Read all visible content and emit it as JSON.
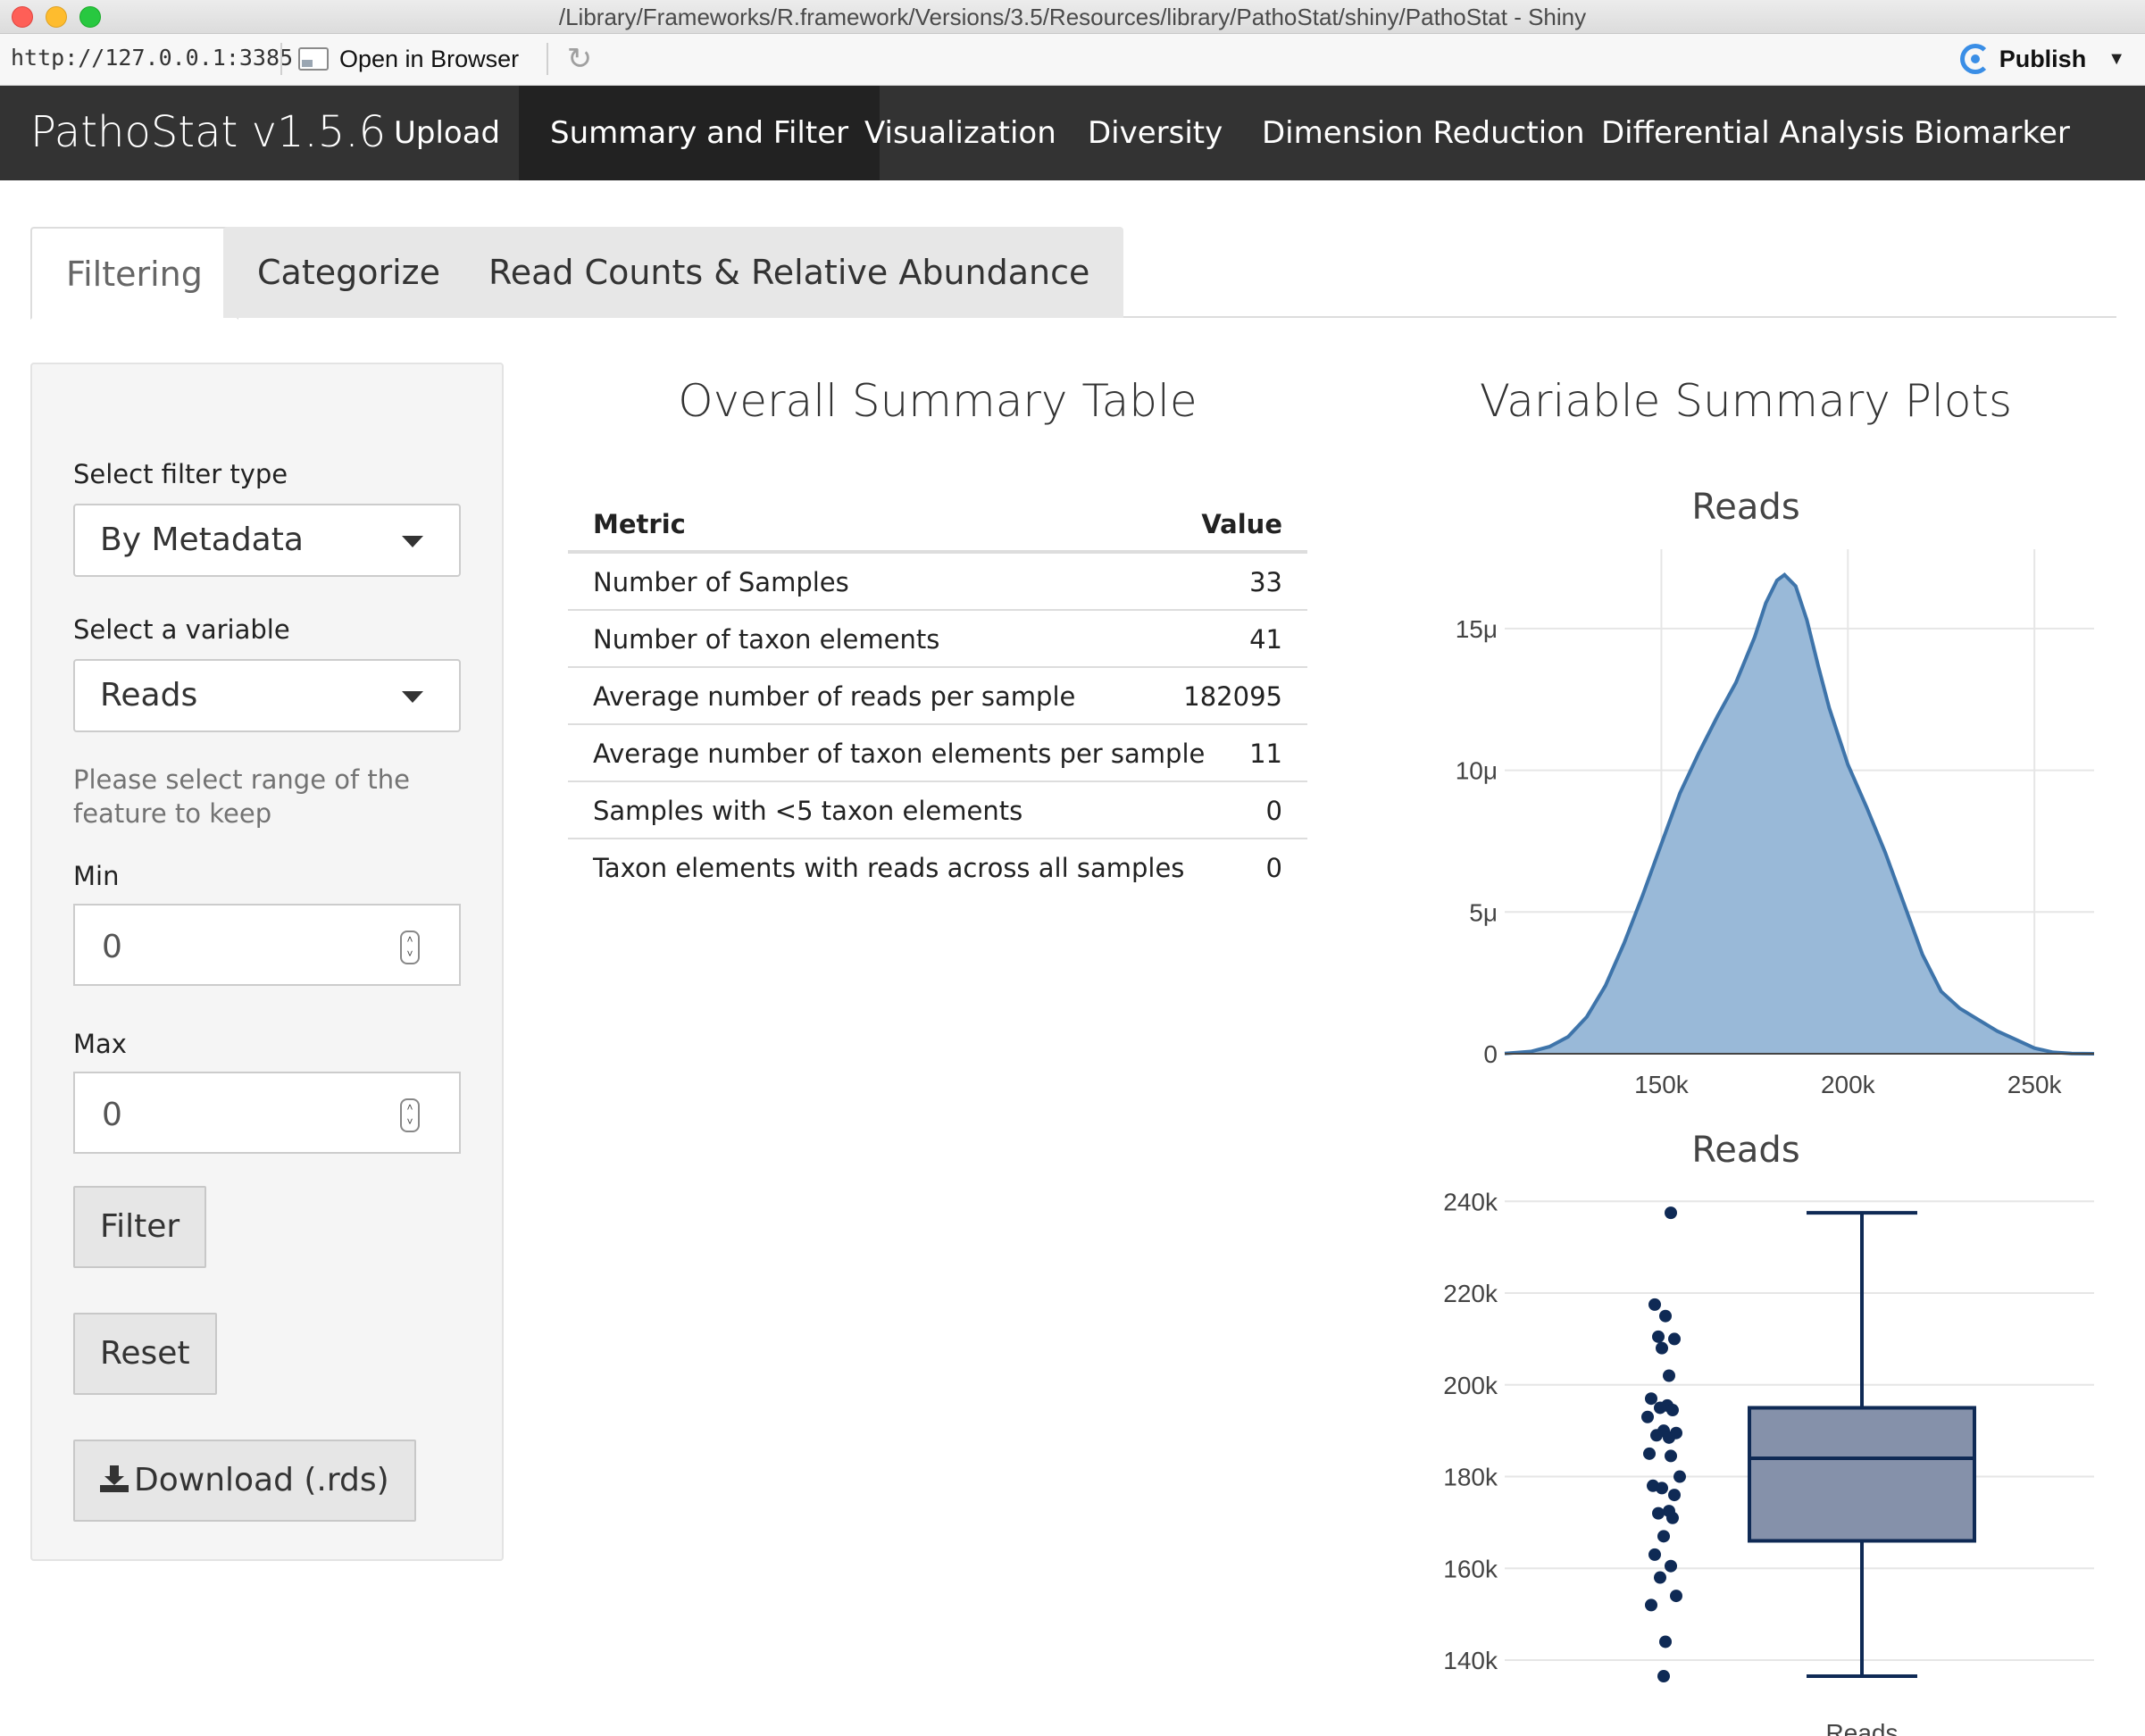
{
  "window": {
    "title": "/Library/Frameworks/R.framework/Versions/3.5/Resources/library/PathoStat/shiny/PathoStat - Shiny"
  },
  "toolbar": {
    "url": "http://127.0.0.1:3385",
    "open_in_browser": "Open in Browser",
    "publish": "Publish"
  },
  "navbar": {
    "brand": "PathoStat v1.5.6",
    "items": [
      "Upload",
      "Summary and Filter",
      "Visualization",
      "Diversity",
      "Dimension Reduction",
      "Differential Analysis",
      "Biomarker"
    ],
    "active": "Summary and Filter"
  },
  "tabs": {
    "items": [
      "Filtering",
      "Categorize",
      "Read Counts & Relative Abundance"
    ],
    "active": "Filtering"
  },
  "sidebar": {
    "filter_type_label": "Select filter type",
    "filter_type_value": "By Metadata",
    "variable_label": "Select a variable",
    "variable_value": "Reads",
    "help_text_line1": "Please select range of the",
    "help_text_line2": "feature to keep",
    "min_label": "Min",
    "min_value": "0",
    "max_label": "Max",
    "max_value": "0",
    "filter_button": "Filter",
    "reset_button": "Reset",
    "download_button": "Download (.rds)"
  },
  "summary_table": {
    "title": "Overall Summary Table",
    "headers": [
      "Metric",
      "Value"
    ],
    "rows": [
      {
        "metric": "Number of Samples",
        "value": "33"
      },
      {
        "metric": "Number of taxon elements",
        "value": "41"
      },
      {
        "metric": "Average number of reads per sample",
        "value": "182095"
      },
      {
        "metric": "Average number of taxon elements per sample",
        "value": "11"
      },
      {
        "metric": "Samples with <5 taxon elements",
        "value": "0"
      },
      {
        "metric": "Taxon elements with reads across all samples",
        "value": "0"
      }
    ]
  },
  "plots_section": {
    "title": "Variable Summary Plots"
  },
  "colors": {
    "navbar": "#333333",
    "navbar_active": "#222222",
    "density_fill": "#99b9d8",
    "density_line": "#3e74aa",
    "box_fill": "#8591aa",
    "box_line": "#0f2a55",
    "points": "#0f2a55"
  },
  "chart_data": [
    {
      "type": "area",
      "title": "Reads",
      "xlabel": "",
      "ylabel": "",
      "x_ticks": [
        "150k",
        "200k",
        "250k"
      ],
      "y_ticks": [
        "0",
        "5μ",
        "10μ",
        "15μ"
      ],
      "xlim": [
        108000,
        266000
      ],
      "ylim": [
        0,
        1.78e-05
      ],
      "grid": true,
      "x": [
        108000,
        115000,
        120000,
        125000,
        130000,
        135000,
        140000,
        145000,
        150000,
        155000,
        160000,
        165000,
        170000,
        175000,
        178000,
        181000,
        183000,
        186000,
        189000,
        192000,
        195000,
        200000,
        205000,
        210000,
        215000,
        220000,
        225000,
        230000,
        235000,
        240000,
        245000,
        250000,
        255000,
        260000,
        266000
      ],
      "y": [
        1e-08,
        8e-08,
        2.5e-07,
        6e-07,
        1.3e-06,
        2.4e-06,
        3.9e-06,
        5.6e-06,
        7.4e-06,
        9.2e-06,
        1.06e-05,
        1.19e-05,
        1.31e-05,
        1.47e-05,
        1.59e-05,
        1.67e-05,
        1.69e-05,
        1.65e-05,
        1.53e-05,
        1.37e-05,
        1.22e-05,
        1.02e-05,
        8.7e-06,
        7.1e-06,
        5.3e-06,
        3.5e-06,
        2.2e-06,
        1.6e-06,
        1.2e-06,
        8e-07,
        5e-07,
        2e-07,
        5e-08,
        1e-08,
        0.0
      ]
    },
    {
      "type": "box",
      "title": "Reads",
      "category": "Reads",
      "y_ticks": [
        "140k",
        "160k",
        "180k",
        "200k",
        "220k",
        "240k"
      ],
      "ylim": [
        133000,
        242000
      ],
      "grid": true,
      "box": {
        "min": 136500,
        "q1": 166000,
        "median": 184000,
        "q3": 195000,
        "max": 237500
      },
      "points": [
        237500,
        217500,
        215000,
        210500,
        210000,
        208000,
        202000,
        197000,
        195500,
        195000,
        194500,
        193000,
        190000,
        189500,
        189000,
        188500,
        185000,
        184500,
        180000,
        178000,
        177500,
        176000,
        172500,
        172000,
        171000,
        167000,
        163000,
        160500,
        158000,
        154000,
        152000,
        144000,
        136500
      ]
    }
  ]
}
